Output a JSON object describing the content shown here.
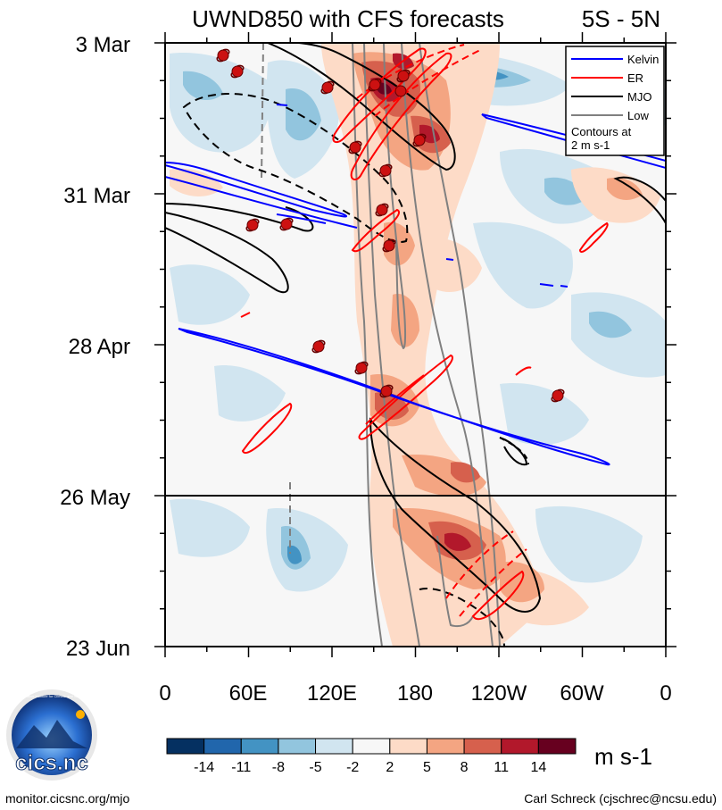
{
  "chart_data": {
    "type": "heatmap",
    "title": "UWND850 with CFS forecasts",
    "region_label": "5S - 5N",
    "y_tick_labels": [
      "3 Mar",
      "31 Mar",
      "28 Apr",
      "26 May",
      "23 Jun"
    ],
    "x_tick_labels": [
      "0",
      "60E",
      "120E",
      "180",
      "120W",
      "60W",
      "0"
    ],
    "x_range_deg_east": [
      0,
      360
    ],
    "y_range": [
      "3 Mar",
      "23 Jun"
    ],
    "current_date_line": "26 May",
    "colorbar": {
      "unit": "m s-1",
      "tick_labels": [
        "-14",
        "-11",
        "-8",
        "-5",
        "-2",
        "2",
        "5",
        "8",
        "11",
        "14"
      ],
      "colors": [
        "#053061",
        "#2166ac",
        "#4393c3",
        "#92c5de",
        "#d1e5f0",
        "#f7f7f7",
        "#fddbc7",
        "#f4a582",
        "#d6604d",
        "#b2182b",
        "#67001f"
      ]
    },
    "legend": {
      "position": "top-right",
      "entries": [
        {
          "name": "Kelvin",
          "color": "#0000ff"
        },
        {
          "name": "ER",
          "color": "#ff0000"
        },
        {
          "name": "MJO",
          "color": "#000000"
        },
        {
          "name": "Low",
          "color": "#808080"
        }
      ],
      "note": [
        "Contours at",
        "2 m s-1"
      ]
    }
  },
  "footer": {
    "left": "monitor.cicsnc.org/mjo",
    "right": "Carl Schreck (cjschrec@ncsu.edu)"
  },
  "logo": {
    "text": "cics.nc",
    "ring_text": "Cooperative Institute for Climate and Satellites"
  }
}
